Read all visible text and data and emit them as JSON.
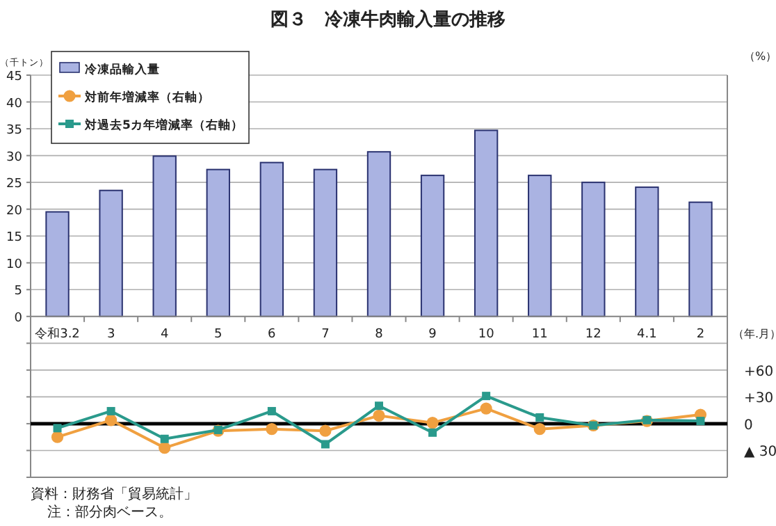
{
  "chart_data": {
    "type": "bar",
    "title": "図３　冷凍牛肉輸入量の推移",
    "ylabel": "（千トン）",
    "y2label": "（%）",
    "xlabel": "（年.月）",
    "categories": [
      "令和3.2",
      "3",
      "4",
      "5",
      "6",
      "7",
      "8",
      "9",
      "10",
      "11",
      "12",
      "4.1",
      "2"
    ],
    "series": [
      {
        "name": "冷凍品輸入量",
        "color": "#aab3e2",
        "values": [
          19.5,
          23.5,
          29.9,
          27.4,
          28.7,
          27.4,
          30.7,
          26.3,
          34.7,
          26.3,
          25.0,
          24.1,
          21.3
        ]
      },
      {
        "name": "対前年増減率（右軸）",
        "type": "line",
        "axis": "y2",
        "color": "#f0a040",
        "marker": "circle",
        "values": [
          -15,
          4,
          -27,
          -8,
          -6,
          -8,
          9,
          1,
          17,
          -6,
          -2,
          3,
          10
        ]
      },
      {
        "name": "対過去5カ年増減率（右軸）",
        "type": "line",
        "axis": "y2",
        "color": "#2a9a8c",
        "marker": "square",
        "values": [
          -5,
          14,
          -17,
          -7,
          14,
          -23,
          20,
          -10,
          31,
          7,
          -2,
          4,
          3
        ]
      }
    ],
    "ylim": [
      -30,
      45
    ],
    "yticks": [
      {
        "value": -30,
        "label": null
      },
      {
        "value": -25,
        "label": null
      },
      {
        "value": -20,
        "label": null
      },
      {
        "value": -15,
        "label": null
      },
      {
        "value": -10,
        "label": null
      },
      {
        "value": -5,
        "label": null
      },
      0,
      5,
      10,
      15,
      20,
      25,
      30,
      35,
      40,
      45
    ],
    "y2lim": [
      -60,
      390
    ],
    "y2ticks": [
      {
        "value": -30,
        "label": "▲ 30"
      },
      0,
      {
        "value": 30,
        "label": "+30"
      },
      {
        "value": 60,
        "label": "+60"
      }
    ],
    "grid": "y",
    "legend": "top left",
    "ref_lines": [
      {
        "axis": "y2",
        "value": 0,
        "color": "#000000"
      }
    ],
    "annotations": [
      "資料：財務省「貿易統計」",
      "注：部分肉ベース。"
    ]
  }
}
